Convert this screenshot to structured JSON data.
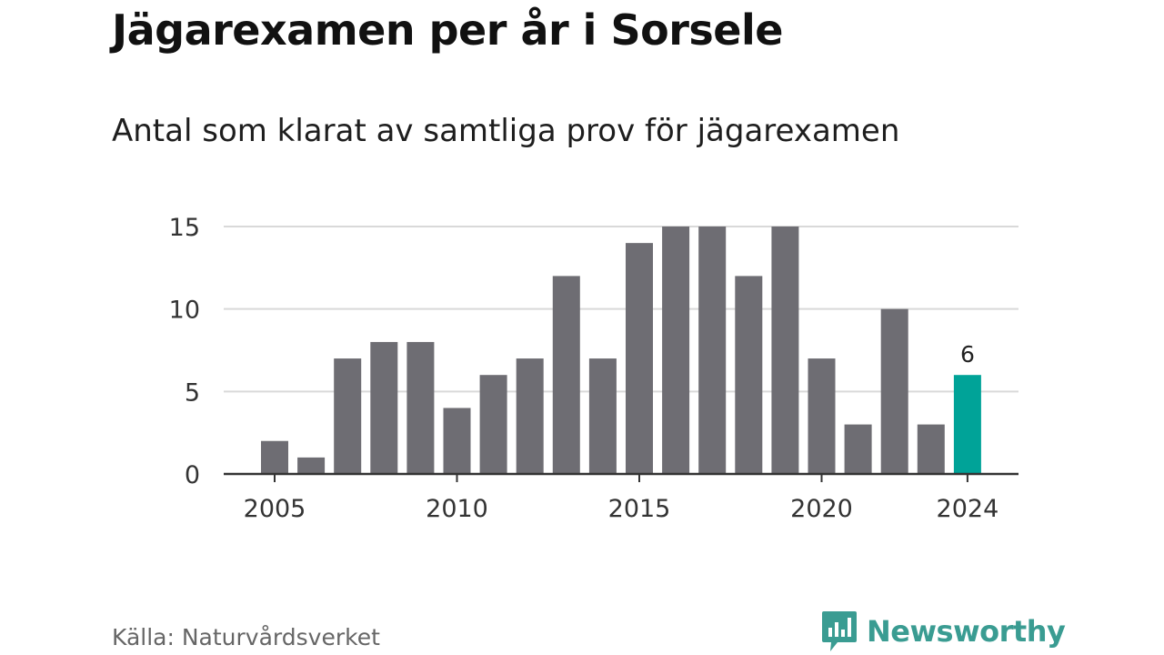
{
  "header": {
    "title": "Jägarexamen per år i Sorsele",
    "subtitle": "Antal som klarat av samtliga prov för jägarexamen"
  },
  "footer": {
    "source": "Källa: Naturvårdsverket",
    "brand_name": "Newsworthy",
    "brand_icon": "newsworthy-logo-icon"
  },
  "colors": {
    "bar": "#6e6d73",
    "highlight": "#00a398",
    "grid": "#d9d9d9",
    "axis": "#333333",
    "brand": "#3a9c92"
  },
  "chart_data": {
    "type": "bar",
    "title": "Jägarexamen per år i Sorsele",
    "subtitle": "Antal som klarat av samtliga prov för jägarexamen",
    "x": [
      2005,
      2006,
      2007,
      2008,
      2009,
      2010,
      2011,
      2012,
      2013,
      2014,
      2015,
      2016,
      2017,
      2018,
      2019,
      2020,
      2021,
      2022,
      2023,
      2024
    ],
    "values": [
      2,
      1,
      7,
      8,
      8,
      4,
      6,
      7,
      12,
      7,
      14,
      15,
      15,
      12,
      15,
      7,
      3,
      10,
      3,
      6
    ],
    "highlight": {
      "x": 2024,
      "label": "6"
    },
    "xticks": [
      "2005",
      "2010",
      "2015",
      "2020",
      "2024"
    ],
    "yticks": [
      "0",
      "5",
      "10",
      "15"
    ],
    "ylim": [
      0,
      15
    ],
    "grid": "horizontal",
    "legend": "none"
  }
}
